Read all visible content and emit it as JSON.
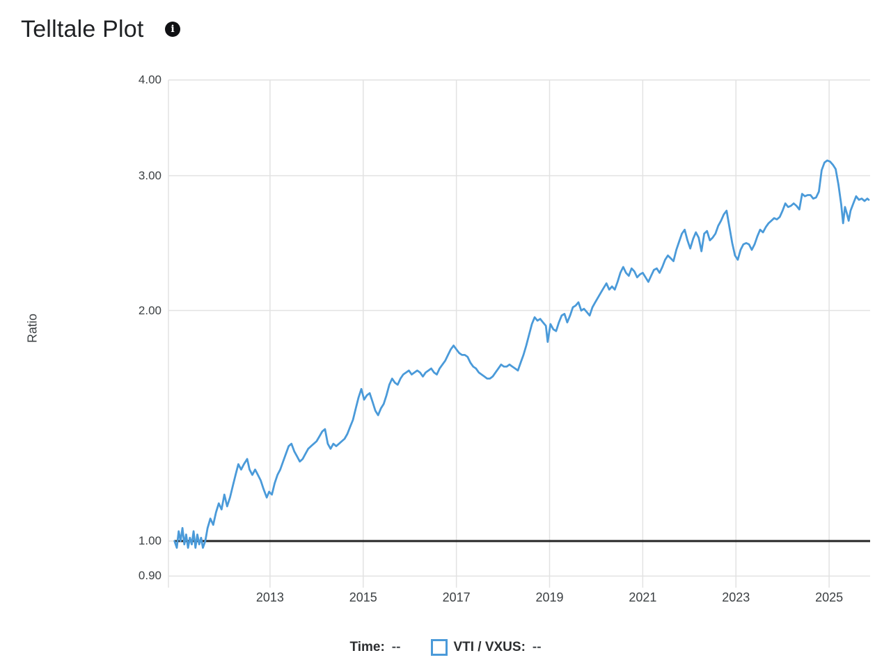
{
  "header": {
    "title": "Telltale Plot",
    "info_icon_glyph": "i"
  },
  "legend": {
    "time_label": "Time:",
    "time_value": "--",
    "series_label": "VTI / VXUS:",
    "series_value": "--",
    "swatch_color": "#4a9ad9"
  },
  "chart_data": {
    "type": "line",
    "title": "Telltale Plot",
    "xlabel": "",
    "ylabel": "Ratio",
    "y_scale": "log",
    "grid": true,
    "legend_position": "bottom",
    "x_domain": [
      2010.82,
      2025.88
    ],
    "y_domain": [
      0.873,
      4.0
    ],
    "x_ticks": [
      {
        "value": 2013,
        "label": "2013"
      },
      {
        "value": 2015,
        "label": "2015"
      },
      {
        "value": 2017,
        "label": "2017"
      },
      {
        "value": 2019,
        "label": "2019"
      },
      {
        "value": 2021,
        "label": "2021"
      },
      {
        "value": 2023,
        "label": "2023"
      },
      {
        "value": 2025,
        "label": "2025"
      }
    ],
    "y_ticks": [
      {
        "value": 4.0,
        "label": "4.00"
      },
      {
        "value": 3.0,
        "label": "3.00"
      },
      {
        "value": 2.0,
        "label": "2.00"
      },
      {
        "value": 1.0,
        "label": "1.00"
      },
      {
        "value": 0.9,
        "label": "0.90"
      }
    ],
    "grid_color": "#e2e2e2",
    "reference_line": {
      "value": 1.0,
      "color": "#242424",
      "width": 3
    },
    "series": [
      {
        "name": "VTI / VXUS",
        "color": "#4a9ad9",
        "width": 2.8,
        "points": [
          [
            2010.95,
            1.0
          ],
          [
            2011.0,
            0.98
          ],
          [
            2011.04,
            1.03
          ],
          [
            2011.08,
            1.0
          ],
          [
            2011.12,
            1.04
          ],
          [
            2011.16,
            0.99
          ],
          [
            2011.2,
            1.02
          ],
          [
            2011.24,
            0.98
          ],
          [
            2011.28,
            1.01
          ],
          [
            2011.32,
            0.99
          ],
          [
            2011.36,
            1.03
          ],
          [
            2011.4,
            0.98
          ],
          [
            2011.44,
            1.02
          ],
          [
            2011.48,
            0.99
          ],
          [
            2011.52,
            1.01
          ],
          [
            2011.56,
            0.98
          ],
          [
            2011.61,
            1.0
          ],
          [
            2011.66,
            1.04
          ],
          [
            2011.72,
            1.07
          ],
          [
            2011.78,
            1.05
          ],
          [
            2011.84,
            1.09
          ],
          [
            2011.9,
            1.12
          ],
          [
            2011.96,
            1.1
          ],
          [
            2012.02,
            1.15
          ],
          [
            2012.08,
            1.11
          ],
          [
            2012.14,
            1.14
          ],
          [
            2012.2,
            1.18
          ],
          [
            2012.26,
            1.22
          ],
          [
            2012.32,
            1.26
          ],
          [
            2012.38,
            1.24
          ],
          [
            2012.44,
            1.26
          ],
          [
            2012.51,
            1.28
          ],
          [
            2012.56,
            1.24
          ],
          [
            2012.62,
            1.22
          ],
          [
            2012.68,
            1.24
          ],
          [
            2012.74,
            1.22
          ],
          [
            2012.8,
            1.2
          ],
          [
            2012.86,
            1.17
          ],
          [
            2012.93,
            1.14
          ],
          [
            2012.98,
            1.16
          ],
          [
            2013.04,
            1.15
          ],
          [
            2013.1,
            1.19
          ],
          [
            2013.16,
            1.22
          ],
          [
            2013.22,
            1.24
          ],
          [
            2013.28,
            1.27
          ],
          [
            2013.34,
            1.3
          ],
          [
            2013.4,
            1.33
          ],
          [
            2013.46,
            1.34
          ],
          [
            2013.52,
            1.31
          ],
          [
            2013.58,
            1.29
          ],
          [
            2013.64,
            1.27
          ],
          [
            2013.7,
            1.28
          ],
          [
            2013.76,
            1.3
          ],
          [
            2013.82,
            1.32
          ],
          [
            2013.88,
            1.33
          ],
          [
            2013.94,
            1.34
          ],
          [
            2014.0,
            1.35
          ],
          [
            2014.06,
            1.37
          ],
          [
            2014.12,
            1.39
          ],
          [
            2014.18,
            1.4
          ],
          [
            2014.24,
            1.34
          ],
          [
            2014.3,
            1.32
          ],
          [
            2014.36,
            1.34
          ],
          [
            2014.42,
            1.33
          ],
          [
            2014.48,
            1.34
          ],
          [
            2014.54,
            1.35
          ],
          [
            2014.6,
            1.36
          ],
          [
            2014.66,
            1.38
          ],
          [
            2014.72,
            1.41
          ],
          [
            2014.78,
            1.44
          ],
          [
            2014.84,
            1.49
          ],
          [
            2014.9,
            1.54
          ],
          [
            2014.96,
            1.58
          ],
          [
            2015.02,
            1.53
          ],
          [
            2015.08,
            1.55
          ],
          [
            2015.14,
            1.56
          ],
          [
            2015.2,
            1.52
          ],
          [
            2015.26,
            1.48
          ],
          [
            2015.32,
            1.46
          ],
          [
            2015.38,
            1.49
          ],
          [
            2015.44,
            1.51
          ],
          [
            2015.5,
            1.55
          ],
          [
            2015.56,
            1.6
          ],
          [
            2015.62,
            1.63
          ],
          [
            2015.68,
            1.61
          ],
          [
            2015.74,
            1.6
          ],
          [
            2015.8,
            1.63
          ],
          [
            2015.86,
            1.65
          ],
          [
            2015.92,
            1.66
          ],
          [
            2015.98,
            1.67
          ],
          [
            2016.04,
            1.65
          ],
          [
            2016.1,
            1.66
          ],
          [
            2016.16,
            1.67
          ],
          [
            2016.22,
            1.66
          ],
          [
            2016.28,
            1.64
          ],
          [
            2016.34,
            1.66
          ],
          [
            2016.4,
            1.67
          ],
          [
            2016.46,
            1.68
          ],
          [
            2016.52,
            1.66
          ],
          [
            2016.58,
            1.65
          ],
          [
            2016.64,
            1.68
          ],
          [
            2016.7,
            1.7
          ],
          [
            2016.76,
            1.72
          ],
          [
            2016.82,
            1.75
          ],
          [
            2016.88,
            1.78
          ],
          [
            2016.94,
            1.8
          ],
          [
            2017.0,
            1.78
          ],
          [
            2017.06,
            1.76
          ],
          [
            2017.12,
            1.75
          ],
          [
            2017.18,
            1.75
          ],
          [
            2017.24,
            1.74
          ],
          [
            2017.3,
            1.71
          ],
          [
            2017.36,
            1.69
          ],
          [
            2017.42,
            1.68
          ],
          [
            2017.48,
            1.66
          ],
          [
            2017.54,
            1.65
          ],
          [
            2017.6,
            1.64
          ],
          [
            2017.66,
            1.63
          ],
          [
            2017.72,
            1.63
          ],
          [
            2017.78,
            1.64
          ],
          [
            2017.84,
            1.66
          ],
          [
            2017.9,
            1.68
          ],
          [
            2017.96,
            1.7
          ],
          [
            2018.02,
            1.69
          ],
          [
            2018.08,
            1.69
          ],
          [
            2018.14,
            1.7
          ],
          [
            2018.2,
            1.69
          ],
          [
            2018.26,
            1.68
          ],
          [
            2018.32,
            1.67
          ],
          [
            2018.38,
            1.71
          ],
          [
            2018.44,
            1.75
          ],
          [
            2018.5,
            1.8
          ],
          [
            2018.56,
            1.86
          ],
          [
            2018.62,
            1.92
          ],
          [
            2018.68,
            1.96
          ],
          [
            2018.74,
            1.94
          ],
          [
            2018.8,
            1.95
          ],
          [
            2018.86,
            1.93
          ],
          [
            2018.92,
            1.91
          ],
          [
            2018.96,
            1.82
          ],
          [
            2019.02,
            1.92
          ],
          [
            2019.08,
            1.89
          ],
          [
            2019.14,
            1.88
          ],
          [
            2019.2,
            1.93
          ],
          [
            2019.26,
            1.97
          ],
          [
            2019.32,
            1.98
          ],
          [
            2019.38,
            1.93
          ],
          [
            2019.44,
            1.97
          ],
          [
            2019.5,
            2.02
          ],
          [
            2019.56,
            2.03
          ],
          [
            2019.62,
            2.05
          ],
          [
            2019.68,
            2.0
          ],
          [
            2019.74,
            2.01
          ],
          [
            2019.8,
            1.99
          ],
          [
            2019.86,
            1.97
          ],
          [
            2019.92,
            2.02
          ],
          [
            2019.98,
            2.05
          ],
          [
            2020.04,
            2.08
          ],
          [
            2020.1,
            2.11
          ],
          [
            2020.16,
            2.14
          ],
          [
            2020.22,
            2.17
          ],
          [
            2020.28,
            2.13
          ],
          [
            2020.34,
            2.15
          ],
          [
            2020.4,
            2.13
          ],
          [
            2020.46,
            2.18
          ],
          [
            2020.52,
            2.24
          ],
          [
            2020.58,
            2.28
          ],
          [
            2020.64,
            2.24
          ],
          [
            2020.7,
            2.22
          ],
          [
            2020.76,
            2.27
          ],
          [
            2020.82,
            2.25
          ],
          [
            2020.88,
            2.21
          ],
          [
            2020.94,
            2.23
          ],
          [
            2021.0,
            2.24
          ],
          [
            2021.06,
            2.21
          ],
          [
            2021.12,
            2.18
          ],
          [
            2021.18,
            2.22
          ],
          [
            2021.24,
            2.26
          ],
          [
            2021.3,
            2.27
          ],
          [
            2021.36,
            2.24
          ],
          [
            2021.42,
            2.28
          ],
          [
            2021.48,
            2.33
          ],
          [
            2021.54,
            2.36
          ],
          [
            2021.6,
            2.34
          ],
          [
            2021.66,
            2.32
          ],
          [
            2021.72,
            2.4
          ],
          [
            2021.78,
            2.46
          ],
          [
            2021.84,
            2.52
          ],
          [
            2021.9,
            2.55
          ],
          [
            2021.96,
            2.47
          ],
          [
            2022.02,
            2.41
          ],
          [
            2022.08,
            2.48
          ],
          [
            2022.14,
            2.53
          ],
          [
            2022.2,
            2.49
          ],
          [
            2022.26,
            2.39
          ],
          [
            2022.32,
            2.52
          ],
          [
            2022.38,
            2.54
          ],
          [
            2022.44,
            2.47
          ],
          [
            2022.5,
            2.49
          ],
          [
            2022.56,
            2.52
          ],
          [
            2022.62,
            2.58
          ],
          [
            2022.68,
            2.62
          ],
          [
            2022.74,
            2.67
          ],
          [
            2022.8,
            2.7
          ],
          [
            2022.86,
            2.57
          ],
          [
            2022.92,
            2.45
          ],
          [
            2022.98,
            2.36
          ],
          [
            2023.04,
            2.33
          ],
          [
            2023.1,
            2.4
          ],
          [
            2023.16,
            2.44
          ],
          [
            2023.22,
            2.45
          ],
          [
            2023.28,
            2.44
          ],
          [
            2023.34,
            2.4
          ],
          [
            2023.4,
            2.44
          ],
          [
            2023.46,
            2.5
          ],
          [
            2023.52,
            2.55
          ],
          [
            2023.58,
            2.53
          ],
          [
            2023.64,
            2.57
          ],
          [
            2023.7,
            2.6
          ],
          [
            2023.76,
            2.62
          ],
          [
            2023.82,
            2.64
          ],
          [
            2023.88,
            2.63
          ],
          [
            2023.94,
            2.65
          ],
          [
            2024.0,
            2.7
          ],
          [
            2024.06,
            2.76
          ],
          [
            2024.12,
            2.73
          ],
          [
            2024.18,
            2.74
          ],
          [
            2024.24,
            2.76
          ],
          [
            2024.3,
            2.74
          ],
          [
            2024.36,
            2.71
          ],
          [
            2024.42,
            2.84
          ],
          [
            2024.48,
            2.82
          ],
          [
            2024.54,
            2.83
          ],
          [
            2024.6,
            2.83
          ],
          [
            2024.66,
            2.8
          ],
          [
            2024.72,
            2.81
          ],
          [
            2024.78,
            2.86
          ],
          [
            2024.84,
            3.05
          ],
          [
            2024.9,
            3.12
          ],
          [
            2024.96,
            3.14
          ],
          [
            2025.02,
            3.13
          ],
          [
            2025.08,
            3.1
          ],
          [
            2025.14,
            3.06
          ],
          [
            2025.2,
            2.92
          ],
          [
            2025.26,
            2.75
          ],
          [
            2025.3,
            2.6
          ],
          [
            2025.34,
            2.73
          ],
          [
            2025.38,
            2.68
          ],
          [
            2025.42,
            2.62
          ],
          [
            2025.46,
            2.7
          ],
          [
            2025.52,
            2.76
          ],
          [
            2025.58,
            2.82
          ],
          [
            2025.64,
            2.79
          ],
          [
            2025.7,
            2.8
          ],
          [
            2025.76,
            2.78
          ],
          [
            2025.82,
            2.8
          ],
          [
            2025.85,
            2.79
          ]
        ]
      }
    ]
  }
}
